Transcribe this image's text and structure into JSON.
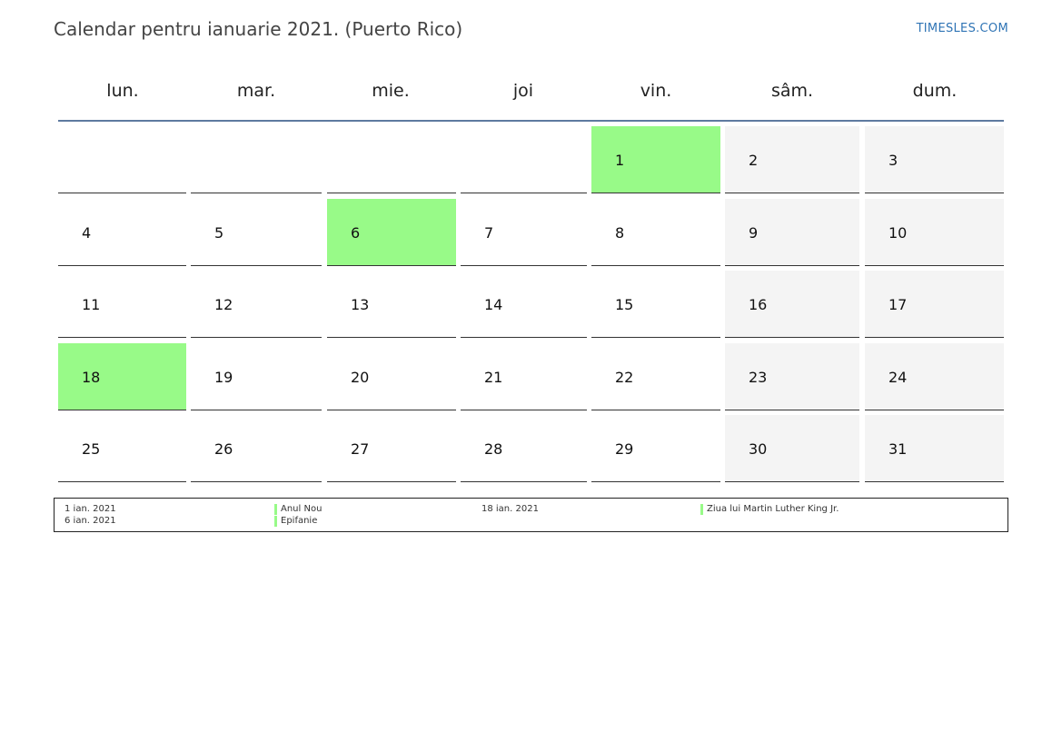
{
  "header": {
    "title": "Calendar pentru ianuarie 2021. (Puerto Rico)",
    "site": "TIMESLES.COM"
  },
  "weekdays": [
    "lun.",
    "mar.",
    "mie.",
    "joi",
    "vin.",
    "sâm.",
    "dum."
  ],
  "weeks": [
    [
      "",
      "",
      "",
      "",
      "1",
      "2",
      "3"
    ],
    [
      "4",
      "5",
      "6",
      "7",
      "8",
      "9",
      "10"
    ],
    [
      "11",
      "12",
      "13",
      "14",
      "15",
      "16",
      "17"
    ],
    [
      "18",
      "19",
      "20",
      "21",
      "22",
      "23",
      "24"
    ],
    [
      "25",
      "26",
      "27",
      "28",
      "29",
      "30",
      "31"
    ]
  ],
  "holiday_days": [
    "1",
    "6",
    "18"
  ],
  "colors": {
    "holiday": "#98fa88",
    "weekend": "#f4f4f4",
    "header_rule": "#5e7aa0",
    "site_link": "#2f74b5"
  },
  "legend": {
    "col1": [
      {
        "date": "1 ian. 2021",
        "name": "Anul Nou"
      },
      {
        "date": "6 ian. 2021",
        "name": "Epifanie"
      }
    ],
    "col2": [
      {
        "date": "18 ian. 2021",
        "name": "Ziua lui Martin Luther King Jr."
      }
    ]
  }
}
